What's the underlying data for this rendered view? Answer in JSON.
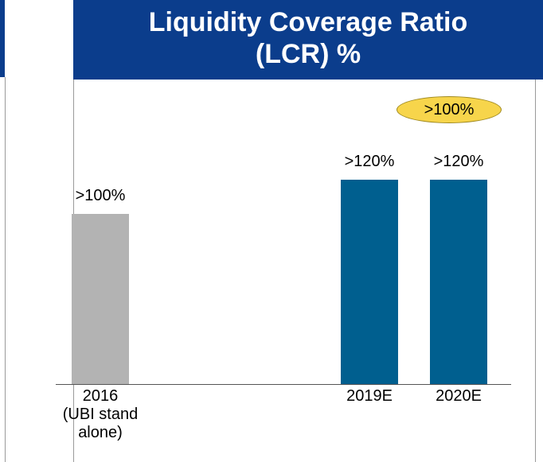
{
  "chart_data": {
    "type": "bar",
    "title": "Liquidity Coverage Ratio (LCR) %",
    "categories": [
      "2016\n(UBI stand\nalone)",
      "2019E",
      "2020E"
    ],
    "values": [
      100,
      120,
      120
    ],
    "value_labels": [
      ">100%",
      ">120%",
      ">120%"
    ],
    "colors": [
      "#b3b3b3",
      "#005f8f",
      "#005f8f"
    ],
    "annotation": ">100%"
  }
}
